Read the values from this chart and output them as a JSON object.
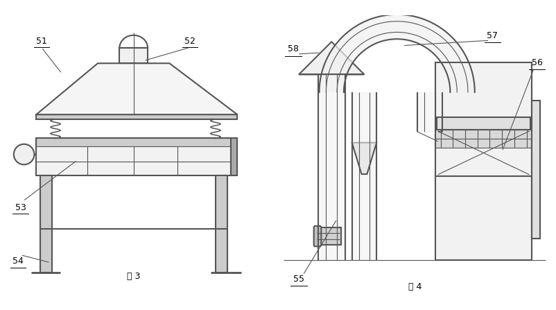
{
  "line_color": "#555555",
  "bg_color": "#ffffff",
  "text_color": "#000000",
  "lw_main": 1.5,
  "lw_thin": 0.8,
  "lw_med": 1.0
}
